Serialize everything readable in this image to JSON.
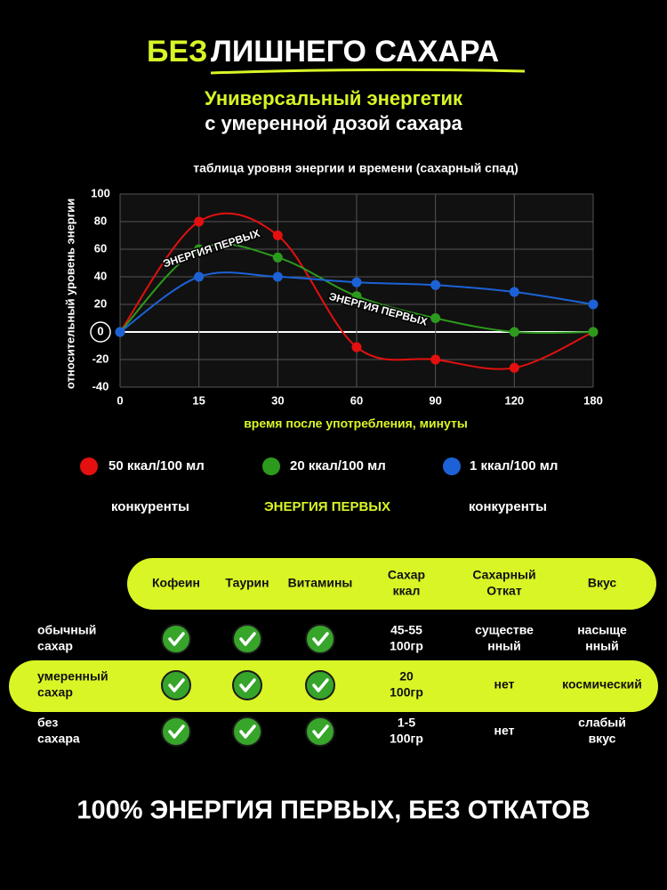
{
  "header": {
    "title_highlight": "БЕЗ",
    "title_rest": "ЛИШНЕГО САХАРА",
    "subtitle": [
      "Универсальный энергетик",
      "с умеренной дозой сахара"
    ]
  },
  "chart_data": {
    "type": "line",
    "title": "таблица уровня энергии и времени (сахарный спад)",
    "x_label": "время после употребления, минуты",
    "y_label": "относительный уровень энергии",
    "categories": [
      "0",
      "15",
      "30",
      "60",
      "90",
      "120",
      "180"
    ],
    "series": [
      {
        "name": "50 ккал/100 мл",
        "caption": "конкуренты",
        "color": "#e3100f",
        "values": [
          0,
          80,
          70,
          -11,
          -20,
          -26,
          0
        ]
      },
      {
        "name": "20 ккал/100 мл",
        "caption": "ЭНЕРГИЯ ПЕРВЫХ",
        "color": "#2c9a1c",
        "values": [
          0,
          60,
          54,
          26,
          10,
          0,
          0
        ]
      },
      {
        "name": "1 ккал/100 мл",
        "caption": "конкуренты",
        "color": "#1c62d6",
        "values": [
          0,
          40,
          40,
          36,
          34,
          29,
          20
        ]
      }
    ],
    "ylim": [
      -40,
      100
    ],
    "yticks": [
      -40,
      -20,
      0,
      20,
      40,
      60,
      80,
      100
    ],
    "grid": true,
    "annotations": [
      "ЭНЕРГИЯ ПЕРВЫХ",
      "ЭНЕРГИЯ ПЕРВЫХ"
    ]
  },
  "table": {
    "columns": [
      [
        "Кофеин"
      ],
      [
        "Таурин"
      ],
      [
        "Витамины"
      ],
      [
        "Сахар",
        "ккал"
      ],
      [
        "Сахарный",
        "Откат"
      ],
      [
        "Вкус"
      ]
    ],
    "rows": [
      {
        "label": [
          "обычный",
          "сахар"
        ],
        "sugar": [
          "45-55",
          "100гр"
        ],
        "rollback": [
          "существе",
          "нный"
        ],
        "taste": [
          "насыще",
          "нный"
        ]
      },
      {
        "label": [
          "умеренный",
          "сахар"
        ],
        "sugar": [
          "20",
          "100гр"
        ],
        "rollback": [
          "нет"
        ],
        "taste": [
          "космический"
        ]
      },
      {
        "label": [
          "без",
          "сахара"
        ],
        "sugar": [
          "1-5",
          "100гр"
        ],
        "rollback": [
          "нет"
        ],
        "taste": [
          "слабый",
          "вкус"
        ]
      }
    ]
  },
  "footer": "100% ЭНЕРГИЯ ПЕРВЫХ, БЕЗ ОТКАТОВ"
}
